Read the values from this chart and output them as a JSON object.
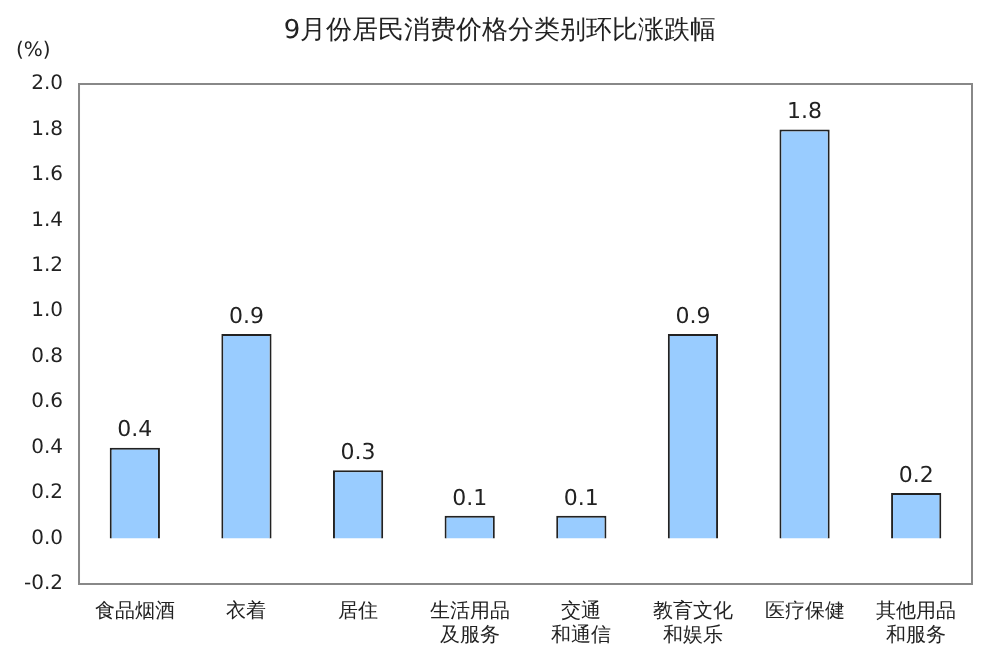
{
  "chart_data": {
    "type": "bar",
    "title": "9月份居民消费价格分类别环比涨跌幅",
    "ylabel": "(%)",
    "categories": [
      "食品烟酒",
      "衣着",
      "居住",
      "生活用品及服务",
      "交通和通信",
      "教育文化和娱乐",
      "医疗保健",
      "其他用品和服务"
    ],
    "values": [
      0.4,
      0.9,
      0.3,
      0.1,
      0.1,
      0.9,
      1.8,
      0.2
    ],
    "color": "#99ccff",
    "ylim": [
      -0.2,
      2.0
    ],
    "yticks": [
      -0.2,
      {
        "value": 0,
        "label": "0.0"
      },
      0.2,
      0.4,
      0.6,
      0.8,
      {
        "value": 1,
        "label": "1.0"
      },
      1.2,
      1.4,
      1.6,
      1.8,
      {
        "value": 2,
        "label": "2.0"
      }
    ],
    "grid": false,
    "legend": false,
    "data_labels": true
  }
}
